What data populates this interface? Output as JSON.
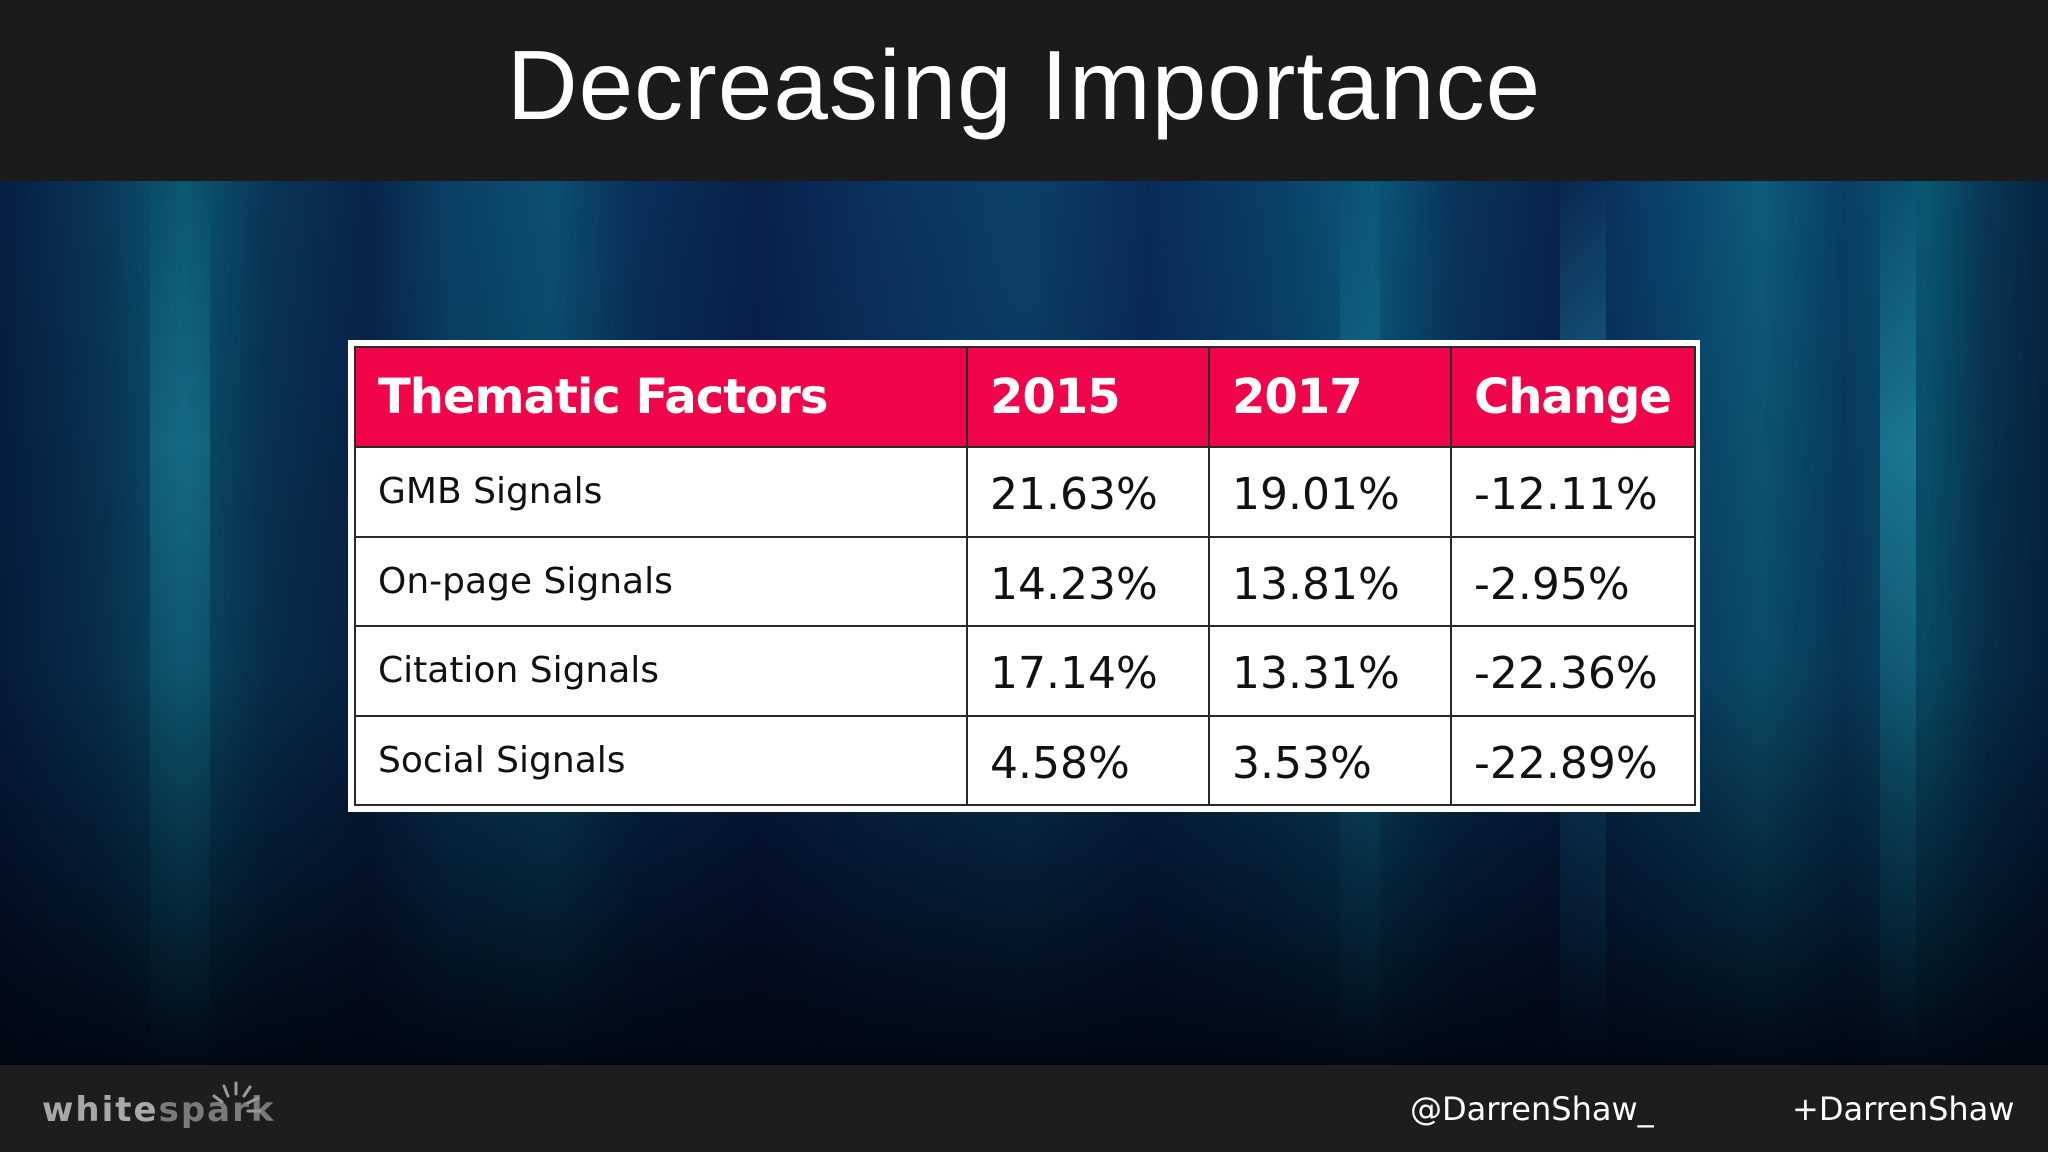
{
  "slide": {
    "title": "Decreasing Importance"
  },
  "chart_data": {
    "type": "table",
    "title": "",
    "columns": [
      "Thematic Factors",
      "2015",
      "2017",
      "Change"
    ],
    "rows": [
      {
        "factor": "GMB Signals",
        "y2015": "21.63%",
        "y2017": "19.01%",
        "change": "-12.11%"
      },
      {
        "factor": "On-page Signals",
        "y2015": "14.23%",
        "y2017": "13.81%",
        "change": "-2.95%"
      },
      {
        "factor": "Citation Signals",
        "y2015": "17.14%",
        "y2017": "13.31%",
        "change": "-22.36%"
      },
      {
        "factor": "Social Signals",
        "y2015": "4.58%",
        "y2017": "3.53%",
        "change": "-22.89%"
      }
    ],
    "header_color": "#f0044a"
  },
  "footer": {
    "logo_white": "white",
    "logo_spark": "spark",
    "twitter": "@DarrenShaw_",
    "gplus": "+DarrenShaw"
  }
}
